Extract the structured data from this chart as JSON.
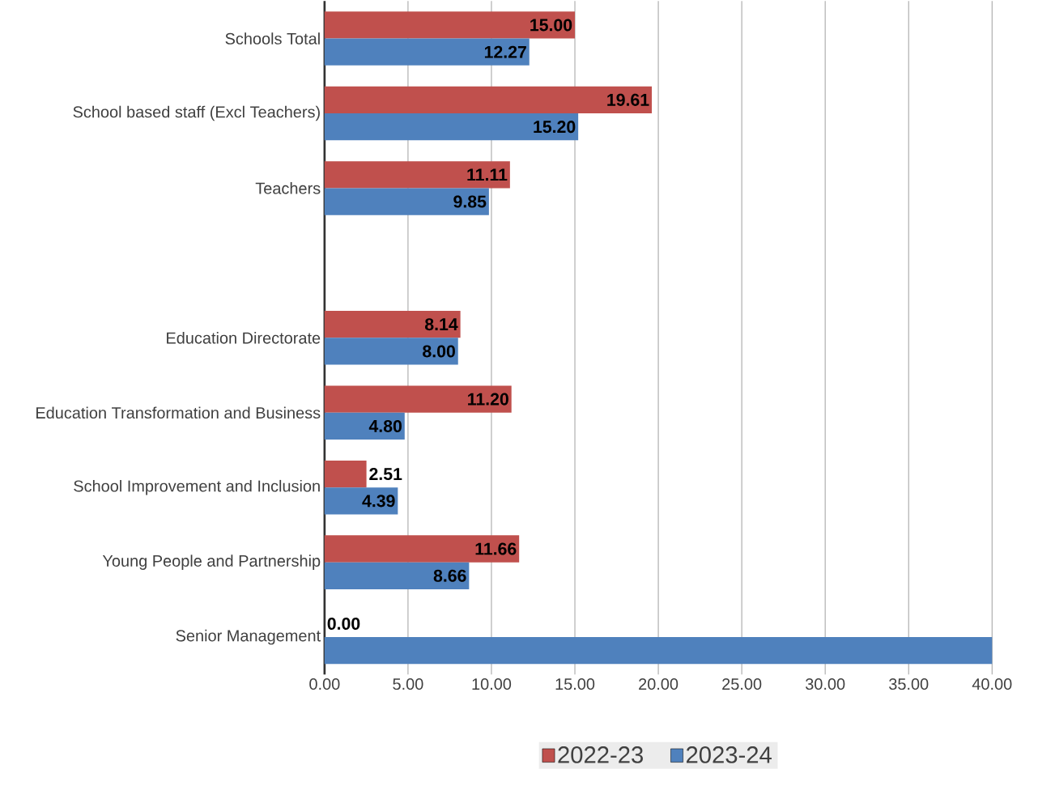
{
  "chart_data": {
    "type": "bar",
    "orientation": "horizontal",
    "categories": [
      "Schools Total",
      "School based staff (Excl Teachers)",
      "Teachers",
      null,
      "Education Directorate",
      "Education Transformation and Business",
      "School Improvement and Inclusion",
      "Young People and Partnership",
      "Senior Management"
    ],
    "series": [
      {
        "name": "2022-23",
        "color": "#c0504d",
        "values": [
          15.0,
          19.61,
          11.11,
          null,
          8.14,
          11.2,
          2.51,
          11.66,
          0.0
        ],
        "value_labels": [
          "15.00",
          "19.61",
          "11.11",
          null,
          "8.14",
          "11.20",
          "2.51",
          "11.66",
          "0.00"
        ]
      },
      {
        "name": "2023-24",
        "color": "#4f81bd",
        "values": [
          12.27,
          15.2,
          9.85,
          null,
          8.0,
          4.8,
          4.39,
          8.66,
          40.0
        ],
        "value_labels": [
          "12.27",
          "15.20",
          "9.85",
          null,
          "8.00",
          "4.80",
          "4.39",
          "8.66",
          null
        ]
      }
    ],
    "xlim": [
      0,
      40
    ],
    "xticks": [
      {
        "value": 0,
        "label": "0.00"
      },
      {
        "value": 5,
        "label": "5.00"
      },
      {
        "value": 10,
        "label": "10.00"
      },
      {
        "value": 15,
        "label": "15.00"
      },
      {
        "value": 20,
        "label": "20.00"
      },
      {
        "value": 25,
        "label": "25.00"
      },
      {
        "value": 30,
        "label": "30.00"
      },
      {
        "value": 35,
        "label": "35.00"
      },
      {
        "value": 40,
        "label": "40.00"
      }
    ],
    "grid": "x",
    "legend": "bottom"
  }
}
